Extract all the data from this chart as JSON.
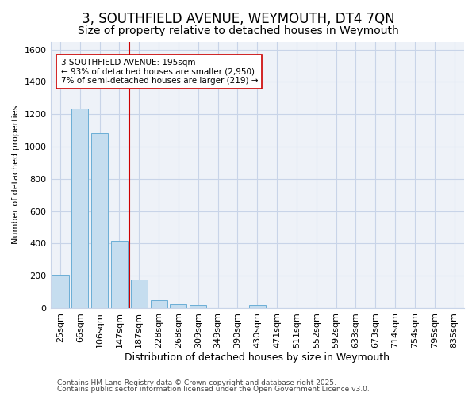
{
  "title": "3, SOUTHFIELD AVENUE, WEYMOUTH, DT4 7QN",
  "subtitle": "Size of property relative to detached houses in Weymouth",
  "xlabel": "Distribution of detached houses by size in Weymouth",
  "ylabel": "Number of detached properties",
  "categories": [
    "25sqm",
    "66sqm",
    "106sqm",
    "147sqm",
    "187sqm",
    "228sqm",
    "268sqm",
    "309sqm",
    "349sqm",
    "390sqm",
    "430sqm",
    "471sqm",
    "511sqm",
    "552sqm",
    "592sqm",
    "633sqm",
    "673sqm",
    "714sqm",
    "754sqm",
    "795sqm",
    "835sqm"
  ],
  "values": [
    205,
    1235,
    1085,
    415,
    175,
    50,
    25,
    20,
    0,
    0,
    18,
    0,
    0,
    0,
    0,
    0,
    0,
    0,
    0,
    0,
    0
  ],
  "bar_color": "#c5ddef",
  "bar_edge_color": "#6baed6",
  "vline_x_index": 4,
  "vline_color": "#cc0000",
  "annotation_text": "3 SOUTHFIELD AVENUE: 195sqm\n← 93% of detached houses are smaller (2,950)\n7% of semi-detached houses are larger (219) →",
  "box_facecolor": "#ffffff",
  "box_edgecolor": "#cc0000",
  "ylim": [
    0,
    1650
  ],
  "yticks": [
    0,
    200,
    400,
    600,
    800,
    1000,
    1200,
    1400,
    1600
  ],
  "footer_line1": "Contains HM Land Registry data © Crown copyright and database right 2025.",
  "footer_line2": "Contains public sector information licensed under the Open Government Licence v3.0.",
  "bg_color": "#ffffff",
  "plot_bg_color": "#eef2f8",
  "grid_color": "#c8d4e8",
  "title_fontsize": 12,
  "subtitle_fontsize": 10,
  "xlabel_fontsize": 9,
  "ylabel_fontsize": 8,
  "tick_fontsize": 8,
  "ann_fontsize": 7.5,
  "footer_fontsize": 6.5
}
